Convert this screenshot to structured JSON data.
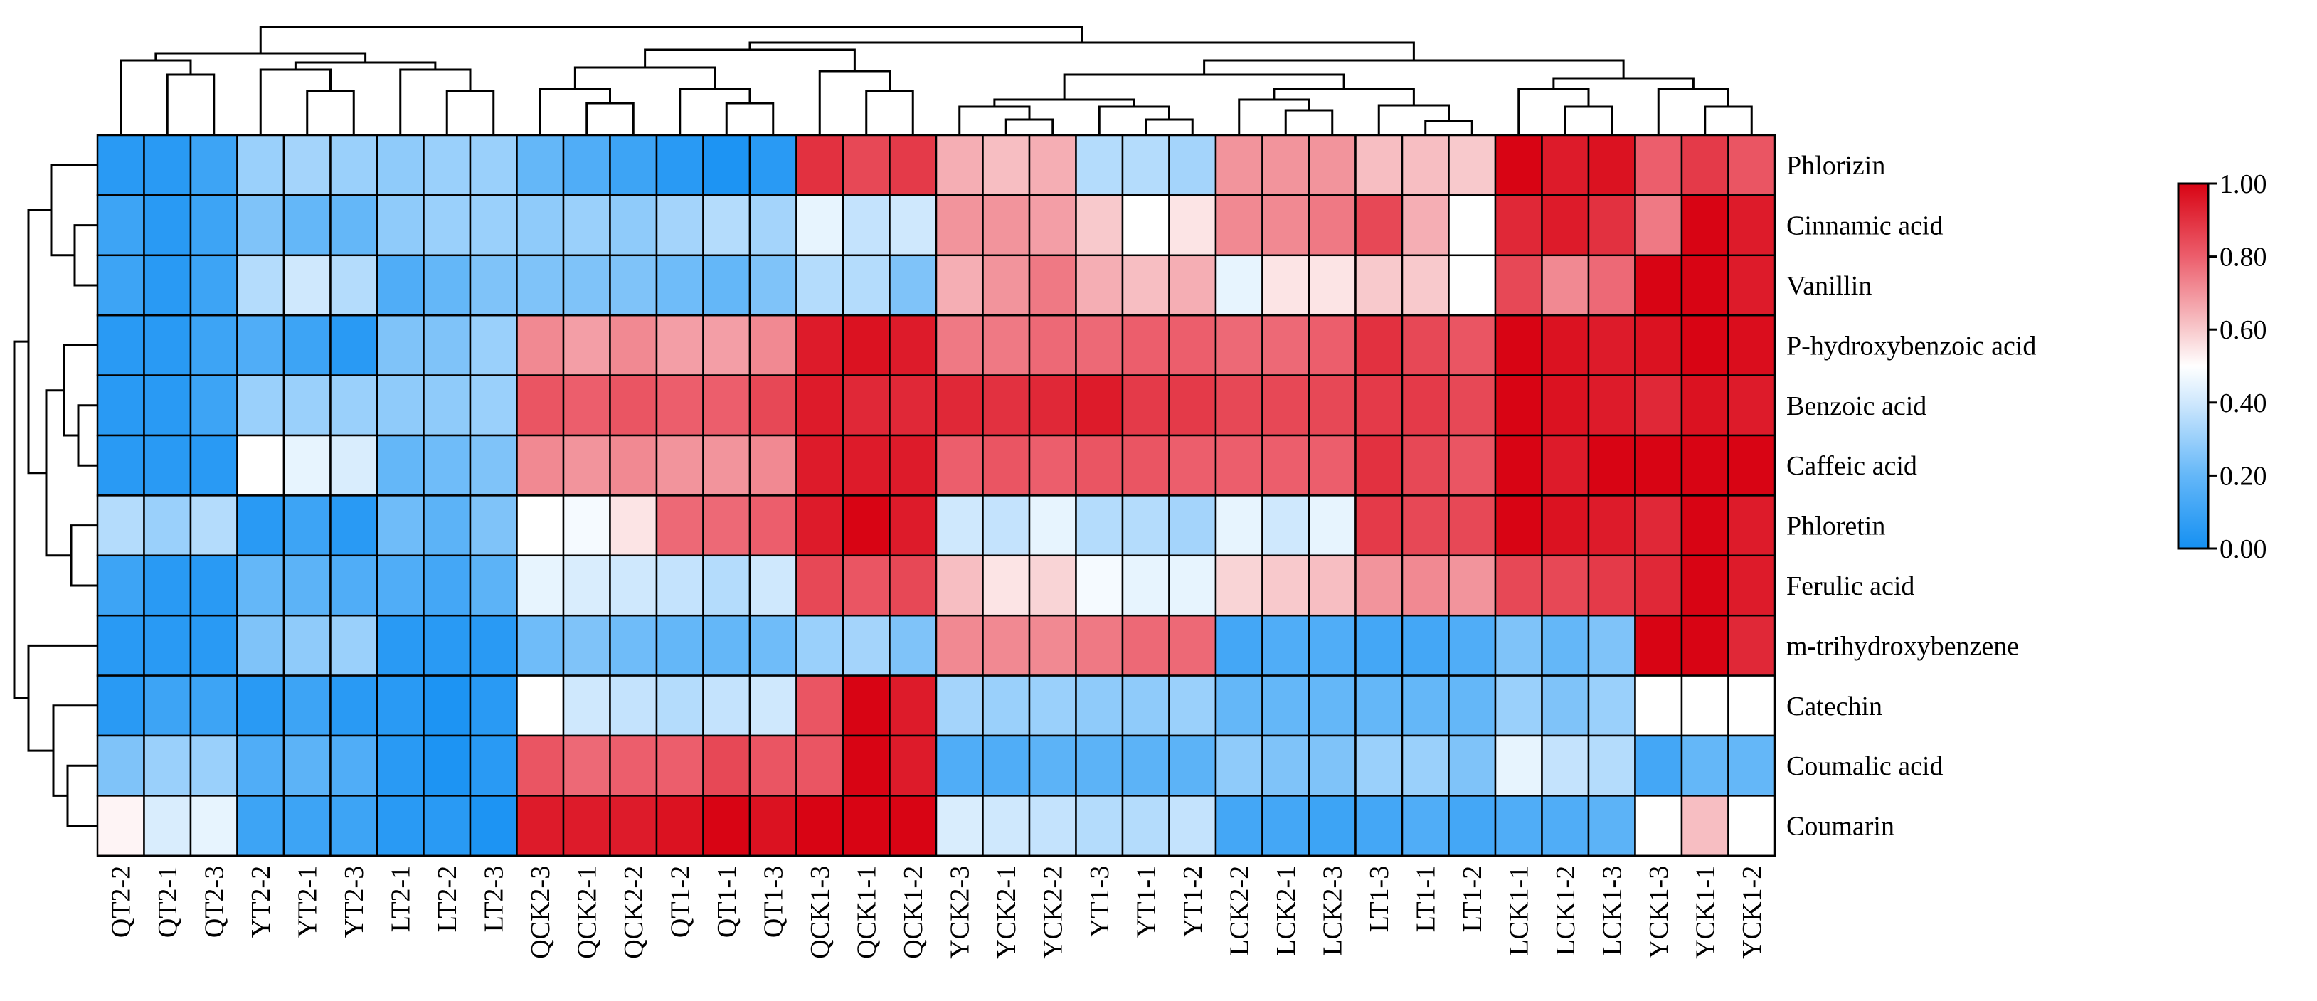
{
  "chart_data": {
    "type": "heatmap",
    "title": "",
    "colorbar": {
      "min": 0,
      "max": 1,
      "ticks": [
        "0.00",
        "0.20",
        "0.40",
        "0.60",
        "0.80",
        "1.00"
      ],
      "stops": [
        {
          "v": 0.0,
          "c": "#1590f2"
        },
        {
          "v": 0.2,
          "c": "#64b7f8"
        },
        {
          "v": 0.4,
          "c": "#cfe8fd"
        },
        {
          "v": 0.5,
          "c": "#ffffff"
        },
        {
          "v": 0.6,
          "c": "#f8c9cc"
        },
        {
          "v": 0.8,
          "c": "#ec5e6c"
        },
        {
          "v": 1.0,
          "c": "#d80414"
        }
      ]
    },
    "columns": [
      "QT2-2",
      "QT2-1",
      "QT2-3",
      "YT2-2",
      "YT2-1",
      "YT2-3",
      "LT2-1",
      "LT2-2",
      "LT2-3",
      "QCK2-3",
      "QCK2-1",
      "QCK2-2",
      "QT1-2",
      "QT1-1",
      "QT1-3",
      "QCK1-3",
      "QCK1-1",
      "QCK1-2",
      "YCK2-3",
      "YCK2-1",
      "YCK2-2",
      "YT1-3",
      "YT1-1",
      "YT1-2",
      "LCK2-2",
      "LCK2-1",
      "LCK2-3",
      "LT1-3",
      "LT1-1",
      "LT1-2",
      "LCK1-1",
      "LCK1-2",
      "LCK1-3",
      "YCK1-3",
      "YCK1-1",
      "YCK1-2"
    ],
    "rows": [
      "Phlorizin",
      "Cinnamic acid",
      "Vanillin",
      "P-hydroxybenzoic acid",
      "Benzoic acid",
      "Caffeic acid",
      "Phloretin",
      "Ferulic acid",
      "m-trihydroxybenzene",
      "Catechin",
      "Coumalic acid",
      "Coumarin"
    ],
    "values": [
      [
        0.05,
        0.05,
        0.1,
        0.3,
        0.32,
        0.3,
        0.28,
        0.3,
        0.3,
        0.2,
        0.15,
        0.1,
        0.05,
        0.02,
        0.05,
        0.9,
        0.85,
        0.88,
        0.65,
        0.62,
        0.65,
        0.35,
        0.35,
        0.32,
        0.7,
        0.7,
        0.7,
        0.62,
        0.62,
        0.6,
        1.0,
        0.95,
        0.97,
        0.8,
        0.88,
        0.82
      ],
      [
        0.1,
        0.05,
        0.1,
        0.25,
        0.2,
        0.2,
        0.28,
        0.3,
        0.3,
        0.28,
        0.3,
        0.28,
        0.32,
        0.35,
        0.32,
        0.45,
        0.38,
        0.4,
        0.7,
        0.7,
        0.68,
        0.6,
        0.5,
        0.55,
        0.72,
        0.72,
        0.75,
        0.85,
        0.65,
        0.5,
        0.92,
        0.95,
        0.9,
        0.75,
        1.0,
        0.95
      ],
      [
        0.1,
        0.05,
        0.1,
        0.35,
        0.4,
        0.35,
        0.15,
        0.2,
        0.25,
        0.25,
        0.25,
        0.25,
        0.22,
        0.2,
        0.25,
        0.35,
        0.35,
        0.25,
        0.65,
        0.7,
        0.75,
        0.65,
        0.62,
        0.65,
        0.45,
        0.55,
        0.55,
        0.6,
        0.6,
        0.5,
        0.85,
        0.72,
        0.78,
        1.0,
        1.0,
        0.95
      ],
      [
        0.05,
        0.05,
        0.1,
        0.15,
        0.1,
        0.05,
        0.25,
        0.25,
        0.3,
        0.72,
        0.68,
        0.72,
        0.68,
        0.68,
        0.72,
        0.95,
        0.97,
        0.95,
        0.75,
        0.75,
        0.78,
        0.78,
        0.8,
        0.8,
        0.78,
        0.78,
        0.8,
        0.9,
        0.85,
        0.82,
        1.0,
        0.97,
        0.95,
        0.97,
        1.0,
        0.98
      ],
      [
        0.05,
        0.05,
        0.1,
        0.3,
        0.3,
        0.3,
        0.28,
        0.28,
        0.3,
        0.82,
        0.8,
        0.82,
        0.8,
        0.8,
        0.85,
        0.95,
        0.92,
        0.92,
        0.92,
        0.9,
        0.92,
        0.95,
        0.88,
        0.88,
        0.85,
        0.85,
        0.85,
        0.88,
        0.88,
        0.85,
        1.0,
        0.97,
        0.95,
        0.92,
        0.97,
        0.95
      ],
      [
        0.05,
        0.05,
        0.05,
        0.5,
        0.45,
        0.42,
        0.2,
        0.22,
        0.25,
        0.72,
        0.7,
        0.72,
        0.7,
        0.7,
        0.72,
        0.95,
        0.95,
        0.95,
        0.8,
        0.82,
        0.8,
        0.82,
        0.82,
        0.8,
        0.8,
        0.8,
        0.8,
        0.9,
        0.85,
        0.82,
        1.0,
        0.95,
        1.0,
        1.0,
        1.0,
        1.0
      ],
      [
        0.35,
        0.3,
        0.35,
        0.05,
        0.1,
        0.05,
        0.22,
        0.18,
        0.25,
        0.5,
        0.48,
        0.55,
        0.78,
        0.78,
        0.8,
        0.95,
        1.0,
        0.95,
        0.4,
        0.38,
        0.45,
        0.35,
        0.35,
        0.32,
        0.45,
        0.4,
        0.45,
        0.88,
        0.85,
        0.85,
        1.0,
        0.97,
        0.95,
        0.92,
        1.0,
        0.95
      ],
      [
        0.1,
        0.05,
        0.05,
        0.2,
        0.18,
        0.15,
        0.15,
        0.12,
        0.18,
        0.45,
        0.42,
        0.4,
        0.38,
        0.35,
        0.4,
        0.85,
        0.82,
        0.85,
        0.62,
        0.55,
        0.58,
        0.48,
        0.45,
        0.45,
        0.58,
        0.6,
        0.62,
        0.7,
        0.72,
        0.7,
        0.85,
        0.85,
        0.88,
        0.92,
        1.0,
        0.95
      ],
      [
        0.05,
        0.05,
        0.05,
        0.25,
        0.28,
        0.3,
        0.05,
        0.05,
        0.05,
        0.22,
        0.25,
        0.22,
        0.2,
        0.2,
        0.22,
        0.3,
        0.32,
        0.25,
        0.72,
        0.72,
        0.72,
        0.75,
        0.78,
        0.78,
        0.12,
        0.15,
        0.15,
        0.12,
        0.12,
        0.15,
        0.25,
        0.2,
        0.25,
        1.0,
        1.0,
        0.92
      ],
      [
        0.05,
        0.1,
        0.1,
        0.05,
        0.1,
        0.05,
        0.05,
        0.02,
        0.05,
        0.5,
        0.4,
        0.38,
        0.35,
        0.38,
        0.4,
        0.82,
        1.0,
        0.95,
        0.32,
        0.3,
        0.3,
        0.28,
        0.28,
        0.3,
        0.2,
        0.2,
        0.2,
        0.2,
        0.2,
        0.2,
        0.3,
        0.25,
        0.3,
        0.5,
        0.5,
        0.5
      ],
      [
        0.25,
        0.3,
        0.3,
        0.15,
        0.18,
        0.15,
        0.05,
        0.02,
        0.05,
        0.82,
        0.78,
        0.8,
        0.8,
        0.85,
        0.82,
        0.82,
        1.0,
        0.95,
        0.15,
        0.15,
        0.18,
        0.18,
        0.18,
        0.18,
        0.28,
        0.25,
        0.25,
        0.3,
        0.3,
        0.25,
        0.45,
        0.38,
        0.35,
        0.12,
        0.2,
        0.2
      ],
      [
        0.52,
        0.42,
        0.45,
        0.1,
        0.1,
        0.1,
        0.05,
        0.05,
        0.02,
        0.95,
        0.95,
        0.95,
        0.97,
        1.0,
        0.97,
        1.0,
        1.0,
        1.0,
        0.42,
        0.4,
        0.38,
        0.35,
        0.35,
        0.38,
        0.12,
        0.12,
        0.1,
        0.12,
        0.15,
        0.12,
        0.15,
        0.15,
        0.18,
        0.5,
        0.62,
        0.5
      ]
    ]
  }
}
